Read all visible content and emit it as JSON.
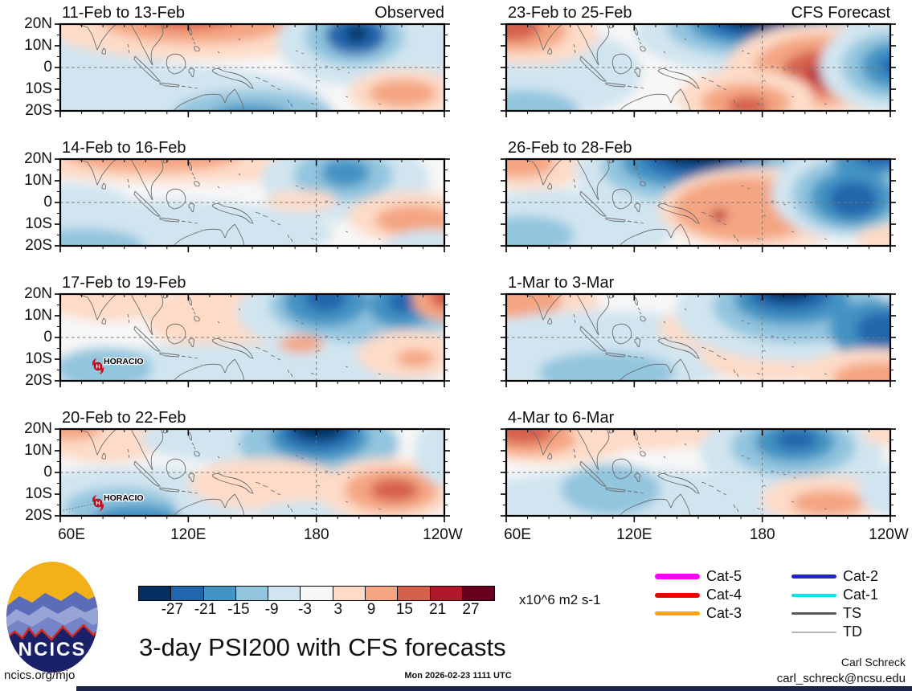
{
  "figure": {
    "title": "3-day PSI200 with CFS forecasts",
    "unit_label": "x10^6 m2 s-1",
    "site": "ncics.org/mjo",
    "timestamp": "Mon 2026-02-23 1111 UTC",
    "credit_name": "Carl Schreck",
    "credit_email": "carl_schreck@ncsu.edu",
    "logo_text": "NCICS"
  },
  "axes": {
    "lat_labels": [
      "20N",
      "10N",
      "0",
      "10S",
      "20S"
    ],
    "lon_labels": [
      "60E",
      "120E",
      "180",
      "120W"
    ]
  },
  "colorbar": {
    "tick_labels": [
      "-27",
      "-21",
      "-15",
      "-9",
      "-3",
      "3",
      "9",
      "15",
      "21",
      "27"
    ],
    "colors": [
      "#053061",
      "#2166ac",
      "#4393c3",
      "#92c5de",
      "#d1e5f0",
      "#f7f7f7",
      "#fddbc7",
      "#f4a582",
      "#d6604d",
      "#b2182b",
      "#67001f"
    ]
  },
  "legend": {
    "left": [
      {
        "label": "Cat-5",
        "color": "#ff00ff",
        "weight": 7
      },
      {
        "label": "Cat-4",
        "color": "#ee0000",
        "weight": 6
      },
      {
        "label": "Cat-3",
        "color": "#ffa500",
        "weight": 5
      }
    ],
    "right": [
      {
        "label": "Cat-2",
        "color": "#2121de",
        "weight": 5
      },
      {
        "label": "Cat-1",
        "color": "#00e5ee",
        "weight": 4
      },
      {
        "label": "TS",
        "color": "#5a5a5a",
        "weight": 3
      },
      {
        "label": "TD",
        "color": "#b8b8b8",
        "weight": 2
      }
    ]
  },
  "chart_data": {
    "type": "heatmap",
    "subtype": "filled-contour-map-grid",
    "variable": "PSI200 (200 hPa streamfunction anomaly)",
    "units": "x10^6 m2 s-1",
    "levels": [
      -27,
      -21,
      -15,
      -9,
      -3,
      3,
      9,
      15,
      21,
      27
    ],
    "fill_colors": [
      "#053061",
      "#2166ac",
      "#4393c3",
      "#92c5de",
      "#d1e5f0",
      "#f7f7f7",
      "#fddbc7",
      "#f4a582",
      "#d6604d",
      "#b2182b",
      "#67001f"
    ],
    "lon_range": [
      "60E",
      "120W"
    ],
    "lat_range": [
      "20S",
      "20N"
    ],
    "grid_lines": {
      "equator_dashed": true,
      "dateline_dashed": true
    },
    "panels": [
      {
        "label": "11-Feb to 13-Feb",
        "tag": "Observed",
        "col": "observed",
        "row": 1,
        "storms": [],
        "blobs": [
          [
            40,
            35,
            95,
            45,
            "#d1e5f0"
          ],
          [
            100,
            95,
            230,
            45,
            "#d1e5f0"
          ],
          [
            478,
            45,
            45,
            55,
            "#d1e5f0"
          ],
          [
            240,
            112,
            100,
            30,
            "#92c5de"
          ],
          [
            235,
            116,
            50,
            16,
            "#4393c3"
          ],
          [
            175,
            2,
            195,
            42,
            "#fddbc7"
          ],
          [
            170,
            -6,
            120,
            30,
            "#f4a582"
          ],
          [
            160,
            -12,
            60,
            18,
            "#d6604d"
          ],
          [
            365,
            22,
            95,
            55,
            "#d1e5f0"
          ],
          [
            366,
            16,
            62,
            36,
            "#92c5de"
          ],
          [
            368,
            14,
            38,
            24,
            "#2166ac"
          ],
          [
            369,
            12,
            14,
            10,
            "#053061"
          ],
          [
            428,
            86,
            70,
            30,
            "#fddbc7"
          ],
          [
            426,
            86,
            42,
            17,
            "#f4a582"
          ]
        ]
      },
      {
        "label": "23-Feb to 25-Feb",
        "tag": "CFS Forecast",
        "col": "forecast",
        "row": 1,
        "storms": [],
        "blobs": [
          [
            60,
            60,
            110,
            55,
            "#d1e5f0"
          ],
          [
            25,
            110,
            65,
            28,
            "#92c5de"
          ],
          [
            30,
            12,
            85,
            38,
            "#fddbc7"
          ],
          [
            18,
            8,
            58,
            26,
            "#f4a582"
          ],
          [
            8,
            4,
            34,
            17,
            "#d6604d"
          ],
          [
            310,
            12,
            150,
            50,
            "#d1e5f0"
          ],
          [
            310,
            5,
            110,
            36,
            "#92c5de"
          ],
          [
            310,
            0,
            82,
            28,
            "#4393c3"
          ],
          [
            308,
            -4,
            60,
            22,
            "#2166ac"
          ],
          [
            305,
            -8,
            38,
            15,
            "#053061"
          ],
          [
            388,
            58,
            115,
            58,
            "#fddbc7"
          ],
          [
            392,
            58,
            85,
            44,
            "#f4a582"
          ],
          [
            395,
            60,
            52,
            28,
            "#d6604d"
          ],
          [
            397,
            62,
            22,
            13,
            "#b2182b"
          ],
          [
            298,
            92,
            85,
            36,
            "#fddbc7"
          ],
          [
            298,
            98,
            55,
            24,
            "#f4a582"
          ],
          [
            300,
            102,
            26,
            12,
            "#d6604d"
          ],
          [
            478,
            52,
            88,
            58,
            "#d1e5f0"
          ],
          [
            480,
            52,
            62,
            42,
            "#92c5de"
          ],
          [
            482,
            52,
            40,
            28,
            "#4393c3"
          ],
          [
            484,
            52,
            18,
            13,
            "#2166ac"
          ]
        ]
      },
      {
        "label": "14-Feb to 16-Feb",
        "tag": "",
        "col": "observed",
        "row": 2,
        "storms": [],
        "blobs": [
          [
            110,
            92,
            230,
            42,
            "#d1e5f0"
          ],
          [
            30,
            110,
            75,
            24,
            "#92c5de"
          ],
          [
            20,
            58,
            70,
            28,
            "#d1e5f0"
          ],
          [
            150,
            0,
            230,
            30,
            "#fddbc7"
          ],
          [
            115,
            -6,
            110,
            22,
            "#f4a582"
          ],
          [
            355,
            26,
            105,
            52,
            "#d1e5f0"
          ],
          [
            352,
            20,
            62,
            32,
            "#92c5de"
          ],
          [
            355,
            17,
            30,
            18,
            "#4393c3"
          ],
          [
            300,
            52,
            45,
            13,
            "#fddbc7"
          ],
          [
            438,
            72,
            80,
            32,
            "#fddbc7"
          ],
          [
            440,
            76,
            48,
            19,
            "#f4a582"
          ],
          [
            462,
            110,
            60,
            22,
            "#d1e5f0"
          ]
        ]
      },
      {
        "label": "26-Feb to 28-Feb",
        "tag": "",
        "col": "forecast",
        "row": 2,
        "storms": [],
        "blobs": [
          [
            70,
            85,
            140,
            48,
            "#d1e5f0"
          ],
          [
            25,
            95,
            60,
            24,
            "#92c5de"
          ],
          [
            28,
            10,
            72,
            28,
            "#fddbc7"
          ],
          [
            15,
            5,
            45,
            18,
            "#f4a582"
          ],
          [
            240,
            16,
            155,
            55,
            "#d1e5f0"
          ],
          [
            238,
            10,
            120,
            45,
            "#92c5de"
          ],
          [
            236,
            4,
            92,
            33,
            "#4393c3"
          ],
          [
            236,
            -2,
            66,
            25,
            "#2166ac"
          ],
          [
            236,
            -8,
            45,
            18,
            "#053061"
          ],
          [
            315,
            62,
            125,
            52,
            "#fddbc7"
          ],
          [
            300,
            62,
            92,
            40,
            "#f4a582"
          ],
          [
            265,
            70,
            10,
            7,
            "#b2182b"
          ],
          [
            425,
            42,
            95,
            58,
            "#d1e5f0"
          ],
          [
            428,
            45,
            72,
            46,
            "#92c5de"
          ],
          [
            430,
            48,
            52,
            34,
            "#4393c3"
          ],
          [
            432,
            50,
            30,
            22,
            "#2166ac"
          ],
          [
            450,
            2,
            45,
            20,
            "#4393c3"
          ],
          [
            465,
            -4,
            30,
            14,
            "#2166ac"
          ],
          [
            480,
            100,
            45,
            18,
            "#fddbc7"
          ]
        ]
      },
      {
        "label": "17-Feb to 19-Feb",
        "tag": "",
        "col": "observed",
        "row": 3,
        "storms": [
          {
            "name": "HORACIO",
            "x": 47,
            "y": 90,
            "track": false
          }
        ],
        "blobs": [
          [
            60,
            8,
            75,
            26,
            "#fddbc7"
          ],
          [
            235,
            30,
            130,
            48,
            "#fddbc7"
          ],
          [
            210,
            100,
            260,
            38,
            "#d1e5f0"
          ],
          [
            55,
            92,
            60,
            26,
            "#92c5de"
          ],
          [
            385,
            22,
            165,
            60,
            "#d1e5f0"
          ],
          [
            380,
            15,
            120,
            45,
            "#92c5de"
          ],
          [
            330,
            10,
            52,
            30,
            "#4393c3"
          ],
          [
            330,
            6,
            26,
            16,
            "#2166ac"
          ],
          [
            425,
            14,
            42,
            28,
            "#4393c3"
          ],
          [
            427,
            10,
            20,
            14,
            "#2166ac"
          ],
          [
            480,
            6,
            42,
            28,
            "#f4a582"
          ],
          [
            483,
            3,
            24,
            16,
            "#d6604d"
          ],
          [
            300,
            62,
            28,
            11,
            "#f4a582"
          ],
          [
            435,
            75,
            65,
            30,
            "#fddbc7"
          ],
          [
            442,
            80,
            24,
            11,
            "#f4a582"
          ]
        ]
      },
      {
        "label": "1-Mar to 3-Mar",
        "tag": "",
        "col": "forecast",
        "row": 3,
        "storms": [],
        "blobs": [
          [
            35,
            12,
            82,
            32,
            "#fddbc7"
          ],
          [
            20,
            8,
            50,
            22,
            "#f4a582"
          ],
          [
            120,
            72,
            190,
            52,
            "#d1e5f0"
          ],
          [
            125,
            98,
            85,
            26,
            "#92c5de"
          ],
          [
            255,
            42,
            65,
            26,
            "#fddbc7"
          ],
          [
            330,
            72,
            90,
            38,
            "#fddbc7"
          ],
          [
            360,
            22,
            150,
            62,
            "#d1e5f0"
          ],
          [
            362,
            15,
            105,
            46,
            "#92c5de"
          ],
          [
            356,
            8,
            72,
            30,
            "#4393c3"
          ],
          [
            352,
            2,
            50,
            20,
            "#2166ac"
          ],
          [
            350,
            -4,
            30,
            13,
            "#053061"
          ],
          [
            460,
            45,
            58,
            38,
            "#4393c3"
          ],
          [
            467,
            45,
            32,
            22,
            "#2166ac"
          ],
          [
            455,
            100,
            85,
            32,
            "#fddbc7"
          ],
          [
            462,
            104,
            55,
            20,
            "#f4a582"
          ]
        ]
      },
      {
        "label": "20-Feb to 22-Feb",
        "tag": "",
        "col": "observed",
        "row": 4,
        "storms": [
          {
            "name": "HORACIO",
            "x": 47,
            "y": 92,
            "track": true
          }
        ],
        "blobs": [
          [
            55,
            10,
            80,
            32,
            "#fddbc7"
          ],
          [
            15,
            0,
            35,
            14,
            "#f4a582"
          ],
          [
            230,
            12,
            130,
            32,
            "#d1e5f0"
          ],
          [
            322,
            18,
            100,
            45,
            "#92c5de"
          ],
          [
            322,
            10,
            62,
            30,
            "#4393c3"
          ],
          [
            322,
            4,
            46,
            22,
            "#2166ac"
          ],
          [
            322,
            -2,
            32,
            16,
            "#053061"
          ],
          [
            90,
            88,
            160,
            42,
            "#d1e5f0"
          ],
          [
            75,
            98,
            70,
            26,
            "#92c5de"
          ],
          [
            95,
            112,
            55,
            18,
            "#4393c3"
          ],
          [
            255,
            68,
            95,
            32,
            "#fddbc7"
          ],
          [
            300,
            108,
            60,
            18,
            "#d1e5f0"
          ],
          [
            408,
            76,
            85,
            40,
            "#fddbc7"
          ],
          [
            412,
            76,
            58,
            27,
            "#f4a582"
          ],
          [
            416,
            76,
            30,
            14,
            "#d6604d"
          ],
          [
            480,
            28,
            40,
            42,
            "#d1e5f0"
          ]
        ]
      },
      {
        "label": "4-Mar to 6-Mar",
        "tag": "",
        "col": "forecast",
        "row": 4,
        "storms": [],
        "blobs": [
          [
            55,
            10,
            105,
            34,
            "#fddbc7"
          ],
          [
            30,
            8,
            62,
            25,
            "#f4a582"
          ],
          [
            22,
            4,
            36,
            15,
            "#d6604d"
          ],
          [
            170,
            4,
            90,
            22,
            "#fddbc7"
          ],
          [
            240,
            6,
            55,
            16,
            "#fddbc7"
          ],
          [
            150,
            92,
            210,
            42,
            "#d1e5f0"
          ],
          [
            130,
            75,
            62,
            32,
            "#92c5de"
          ],
          [
            355,
            28,
            115,
            52,
            "#d1e5f0"
          ],
          [
            357,
            22,
            78,
            37,
            "#92c5de"
          ],
          [
            359,
            16,
            50,
            25,
            "#4393c3"
          ],
          [
            361,
            13,
            26,
            13,
            "#2166ac"
          ],
          [
            478,
            6,
            35,
            14,
            "#fddbc7"
          ],
          [
            395,
            88,
            78,
            30,
            "#fddbc7"
          ],
          [
            400,
            92,
            45,
            16,
            "#f4a582"
          ],
          [
            478,
            75,
            40,
            32,
            "#d1e5f0"
          ]
        ]
      }
    ]
  }
}
